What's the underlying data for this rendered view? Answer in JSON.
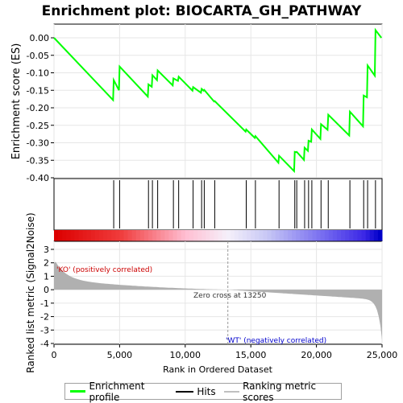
{
  "chart_data": {
    "type": "line",
    "title": "Enrichment plot: BIOCARTA_GH_PATHWAY",
    "ylabel_top": "Enrichment score (ES)",
    "ylabel_bottom": "Ranked list metric (Signal2Noise)",
    "xlabel": "Rank in Ordered Dataset",
    "xlim": [
      0,
      25000
    ],
    "x_ticks": [
      0,
      5000,
      10000,
      15000,
      20000,
      25000
    ],
    "x_tick_labels": [
      "0",
      "5,000",
      "10,000",
      "15,000",
      "20,000",
      "25,000"
    ],
    "es_ylim": [
      -0.4,
      0.03
    ],
    "es_y_ticks": [
      0.0,
      -0.05,
      -0.1,
      -0.15,
      -0.2,
      -0.25,
      -0.3,
      -0.35,
      -0.4
    ],
    "es_y_tick_labels": [
      "0.00",
      "-0.05",
      "-0.10",
      "-0.15",
      "-0.20",
      "-0.25",
      "-0.30",
      "-0.35",
      "-0.40"
    ],
    "metric_ylim": [
      -4,
      3
    ],
    "metric_y_ticks": [
      3,
      2,
      1,
      0,
      -1,
      -2,
      -3,
      -4
    ],
    "metric_y_tick_labels": [
      "3",
      "2",
      "1",
      "0",
      "-1",
      "-2",
      "-3",
      "-4"
    ],
    "series": [
      {
        "name": "Enrichment profile",
        "color": "#00ff00",
        "x": [
          0,
          4500,
          4550,
          4950,
          5000,
          7150,
          7200,
          7450,
          7500,
          7850,
          7900,
          9050,
          9100,
          9450,
          9500,
          10550,
          10600,
          11200,
          11250,
          11400,
          11450,
          12200,
          12250,
          14600,
          14650,
          15300,
          15350,
          17100,
          17150,
          18300,
          18350,
          18450,
          18500,
          19050,
          19100,
          19350,
          19400,
          19600,
          19650,
          20300,
          20350,
          20850,
          20900,
          22500,
          22550,
          23550,
          23600,
          23850,
          23900,
          24450,
          24500,
          24950
        ],
        "y": [
          0.0,
          -0.178,
          -0.121,
          -0.15,
          -0.082,
          -0.168,
          -0.133,
          -0.14,
          -0.107,
          -0.121,
          -0.093,
          -0.136,
          -0.116,
          -0.123,
          -0.111,
          -0.151,
          -0.141,
          -0.157,
          -0.146,
          -0.151,
          -0.149,
          -0.182,
          -0.181,
          -0.268,
          -0.262,
          -0.286,
          -0.281,
          -0.357,
          -0.337,
          -0.381,
          -0.326,
          -0.327,
          -0.326,
          -0.349,
          -0.314,
          -0.323,
          -0.294,
          -0.297,
          -0.262,
          -0.289,
          -0.247,
          -0.263,
          -0.22,
          -0.279,
          -0.211,
          -0.253,
          -0.165,
          -0.17,
          -0.079,
          -0.108,
          0.022,
          0.0
        ]
      }
    ],
    "hits": [
      4550,
      5000,
      7200,
      7500,
      7900,
      9100,
      9500,
      10600,
      11250,
      11450,
      12250,
      14650,
      15350,
      17150,
      18350,
      18500,
      19100,
      19400,
      19650,
      20350,
      20900,
      22550,
      23600,
      23900,
      24500
    ],
    "zero_cross_rank": 13250,
    "annotations": {
      "positive": "'KO' (positively correlated)",
      "negative": "'WT' (negatively correlated)",
      "zero_cross": "Zero cross at 13250"
    },
    "colors": {
      "profile": "#00ff00",
      "hits": "#000000",
      "metric_fill": "#b0b0b0",
      "positive_text": "#cc0000",
      "negative_text": "#0000cc",
      "zero_line": "#999999"
    }
  },
  "legend": {
    "items": [
      {
        "label": "Enrichment profile",
        "color": "#00ff00"
      },
      {
        "label": "Hits",
        "color": "#000000"
      },
      {
        "label": "Ranking metric scores",
        "color": "#c0c0c0"
      }
    ]
  }
}
